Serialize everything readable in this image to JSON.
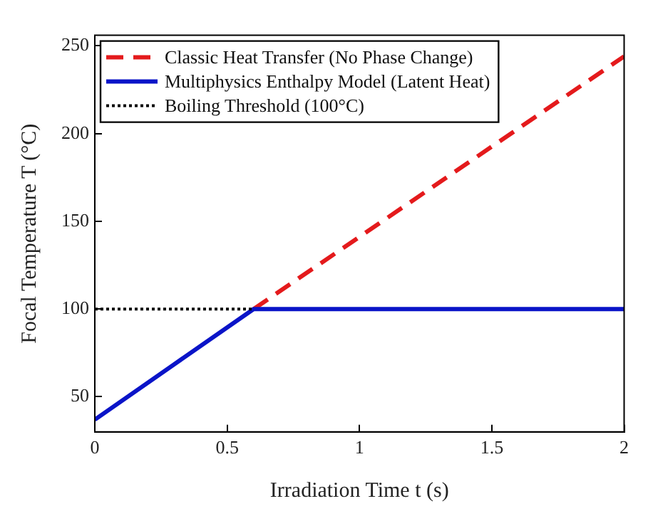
{
  "chart_data": {
    "type": "line",
    "xlabel": "Irradiation Time t (s)",
    "ylabel": "Focal Temperature T (°C)",
    "xlim": [
      0,
      2
    ],
    "xticks": [
      0,
      0.5,
      1,
      1.5,
      2
    ],
    "ylim": [
      30,
      256
    ],
    "yticks": [
      50,
      100,
      150,
      200,
      250
    ],
    "grid": false,
    "legend": "top left",
    "series": [
      {
        "name": "Classic Heat Transfer (No Phase Change)",
        "color": "#e41a1c",
        "line_style": "dashed",
        "x": [
          0.6,
          2
        ],
        "values": [
          100,
          244
        ]
      },
      {
        "name": "Multiphysics Enthalpy Model (Latent Heat)",
        "color": "#0a14c8",
        "line_style": "solid",
        "x": [
          0,
          0.6,
          2
        ],
        "values": [
          37,
          100,
          100
        ]
      },
      {
        "name": "Boiling Threshold (100°C)",
        "color": "#000000",
        "line_style": "dotted",
        "x": [
          0,
          0.6
        ],
        "values": [
          100,
          100
        ]
      }
    ]
  }
}
